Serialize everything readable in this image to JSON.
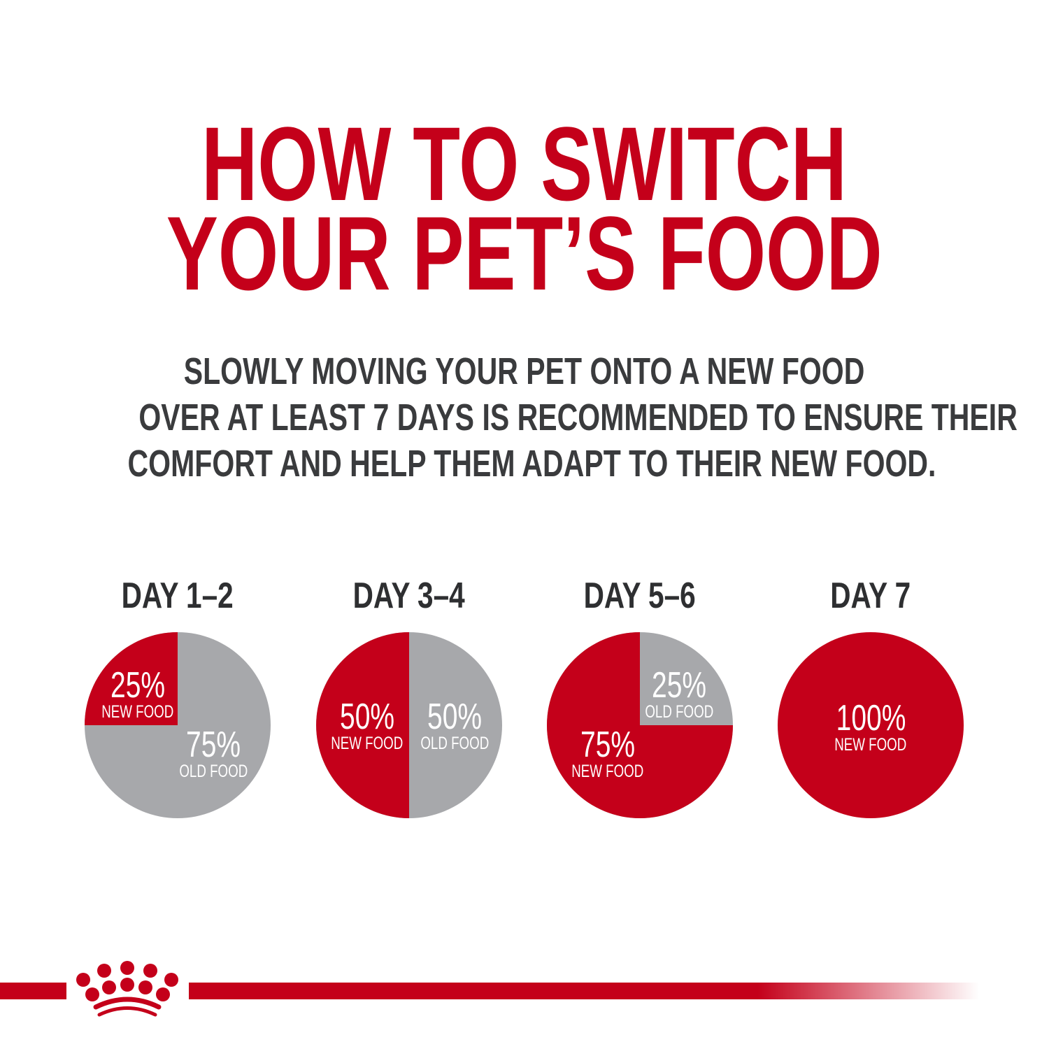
{
  "title": {
    "line1": "HOW TO SWITCH",
    "line2": "YOUR PET’S FOOD"
  },
  "subtitle": {
    "line1": "SLOWLY MOVING YOUR PET ONTO A NEW FOOD",
    "line2": "OVER AT LEAST 7 DAYS IS RECOMMENDED TO ENSURE THEIR",
    "line3": "COMFORT AND HELP THEM ADAPT TO THEIR NEW FOOD."
  },
  "colors": {
    "new_food": "#c4001a",
    "old_food": "#a7a8ab",
    "title": "#c4001a",
    "text": "#3a3b3d"
  },
  "logo": {
    "icon": "crown-icon"
  },
  "chart_data": {
    "type": "pie",
    "charts": [
      {
        "title": "DAY 1–2",
        "slices": [
          {
            "label": "NEW FOOD",
            "value": 25,
            "text": "25%"
          },
          {
            "label": "OLD FOOD",
            "value": 75,
            "text": "75%"
          }
        ]
      },
      {
        "title": "DAY 3–4",
        "slices": [
          {
            "label": "NEW FOOD",
            "value": 50,
            "text": "50%"
          },
          {
            "label": "OLD FOOD",
            "value": 50,
            "text": "50%"
          }
        ]
      },
      {
        "title": "DAY 5–6",
        "slices": [
          {
            "label": "NEW FOOD",
            "value": 75,
            "text": "75%"
          },
          {
            "label": "OLD FOOD",
            "value": 25,
            "text": "25%"
          }
        ]
      },
      {
        "title": "DAY 7",
        "slices": [
          {
            "label": "NEW FOOD",
            "value": 100,
            "text": "100%"
          }
        ]
      }
    ]
  }
}
